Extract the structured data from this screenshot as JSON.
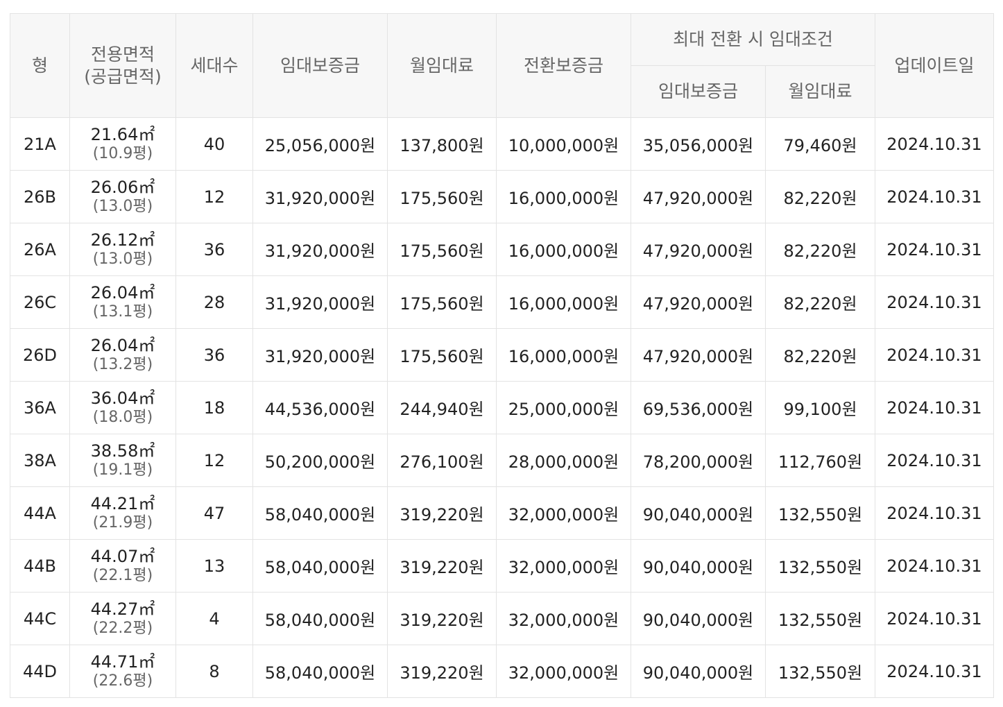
{
  "headers": {
    "type": "형",
    "area_line1": "전용면적",
    "area_line2": "(공급면적)",
    "households": "세대수",
    "deposit": "임대보증금",
    "monthly_rent": "월임대료",
    "conversion_deposit": "전환보증금",
    "max_conversion_group": "최대 전환 시 임대조건",
    "max_deposit": "임대보증금",
    "max_monthly_rent": "월임대료",
    "updated": "업데이트일"
  },
  "rows": [
    {
      "type": "21A",
      "area": "21.64㎡",
      "supply": "(10.9평)",
      "households": "40",
      "deposit": "25,056,000원",
      "rent": "137,800원",
      "conversion": "10,000,000원",
      "max_deposit": "35,056,000원",
      "max_rent": "79,460원",
      "updated": "2024.10.31"
    },
    {
      "type": "26B",
      "area": "26.06㎡",
      "supply": "(13.0평)",
      "households": "12",
      "deposit": "31,920,000원",
      "rent": "175,560원",
      "conversion": "16,000,000원",
      "max_deposit": "47,920,000원",
      "max_rent": "82,220원",
      "updated": "2024.10.31"
    },
    {
      "type": "26A",
      "area": "26.12㎡",
      "supply": "(13.0평)",
      "households": "36",
      "deposit": "31,920,000원",
      "rent": "175,560원",
      "conversion": "16,000,000원",
      "max_deposit": "47,920,000원",
      "max_rent": "82,220원",
      "updated": "2024.10.31"
    },
    {
      "type": "26C",
      "area": "26.04㎡",
      "supply": "(13.1평)",
      "households": "28",
      "deposit": "31,920,000원",
      "rent": "175,560원",
      "conversion": "16,000,000원",
      "max_deposit": "47,920,000원",
      "max_rent": "82,220원",
      "updated": "2024.10.31"
    },
    {
      "type": "26D",
      "area": "26.04㎡",
      "supply": "(13.2평)",
      "households": "36",
      "deposit": "31,920,000원",
      "rent": "175,560원",
      "conversion": "16,000,000원",
      "max_deposit": "47,920,000원",
      "max_rent": "82,220원",
      "updated": "2024.10.31"
    },
    {
      "type": "36A",
      "area": "36.04㎡",
      "supply": "(18.0평)",
      "households": "18",
      "deposit": "44,536,000원",
      "rent": "244,940원",
      "conversion": "25,000,000원",
      "max_deposit": "69,536,000원",
      "max_rent": "99,100원",
      "updated": "2024.10.31"
    },
    {
      "type": "38A",
      "area": "38.58㎡",
      "supply": "(19.1평)",
      "households": "12",
      "deposit": "50,200,000원",
      "rent": "276,100원",
      "conversion": "28,000,000원",
      "max_deposit": "78,200,000원",
      "max_rent": "112,760원",
      "updated": "2024.10.31"
    },
    {
      "type": "44A",
      "area": "44.21㎡",
      "supply": "(21.9평)",
      "households": "47",
      "deposit": "58,040,000원",
      "rent": "319,220원",
      "conversion": "32,000,000원",
      "max_deposit": "90,040,000원",
      "max_rent": "132,550원",
      "updated": "2024.10.31"
    },
    {
      "type": "44B",
      "area": "44.07㎡",
      "supply": "(22.1평)",
      "households": "13",
      "deposit": "58,040,000원",
      "rent": "319,220원",
      "conversion": "32,000,000원",
      "max_deposit": "90,040,000원",
      "max_rent": "132,550원",
      "updated": "2024.10.31"
    },
    {
      "type": "44C",
      "area": "44.27㎡",
      "supply": "(22.2평)",
      "households": "4",
      "deposit": "58,040,000원",
      "rent": "319,220원",
      "conversion": "32,000,000원",
      "max_deposit": "90,040,000원",
      "max_rent": "132,550원",
      "updated": "2024.10.31"
    },
    {
      "type": "44D",
      "area": "44.71㎡",
      "supply": "(22.6평)",
      "households": "8",
      "deposit": "58,040,000원",
      "rent": "319,220원",
      "conversion": "32,000,000원",
      "max_deposit": "90,040,000원",
      "max_rent": "132,550원",
      "updated": "2024.10.31"
    }
  ]
}
